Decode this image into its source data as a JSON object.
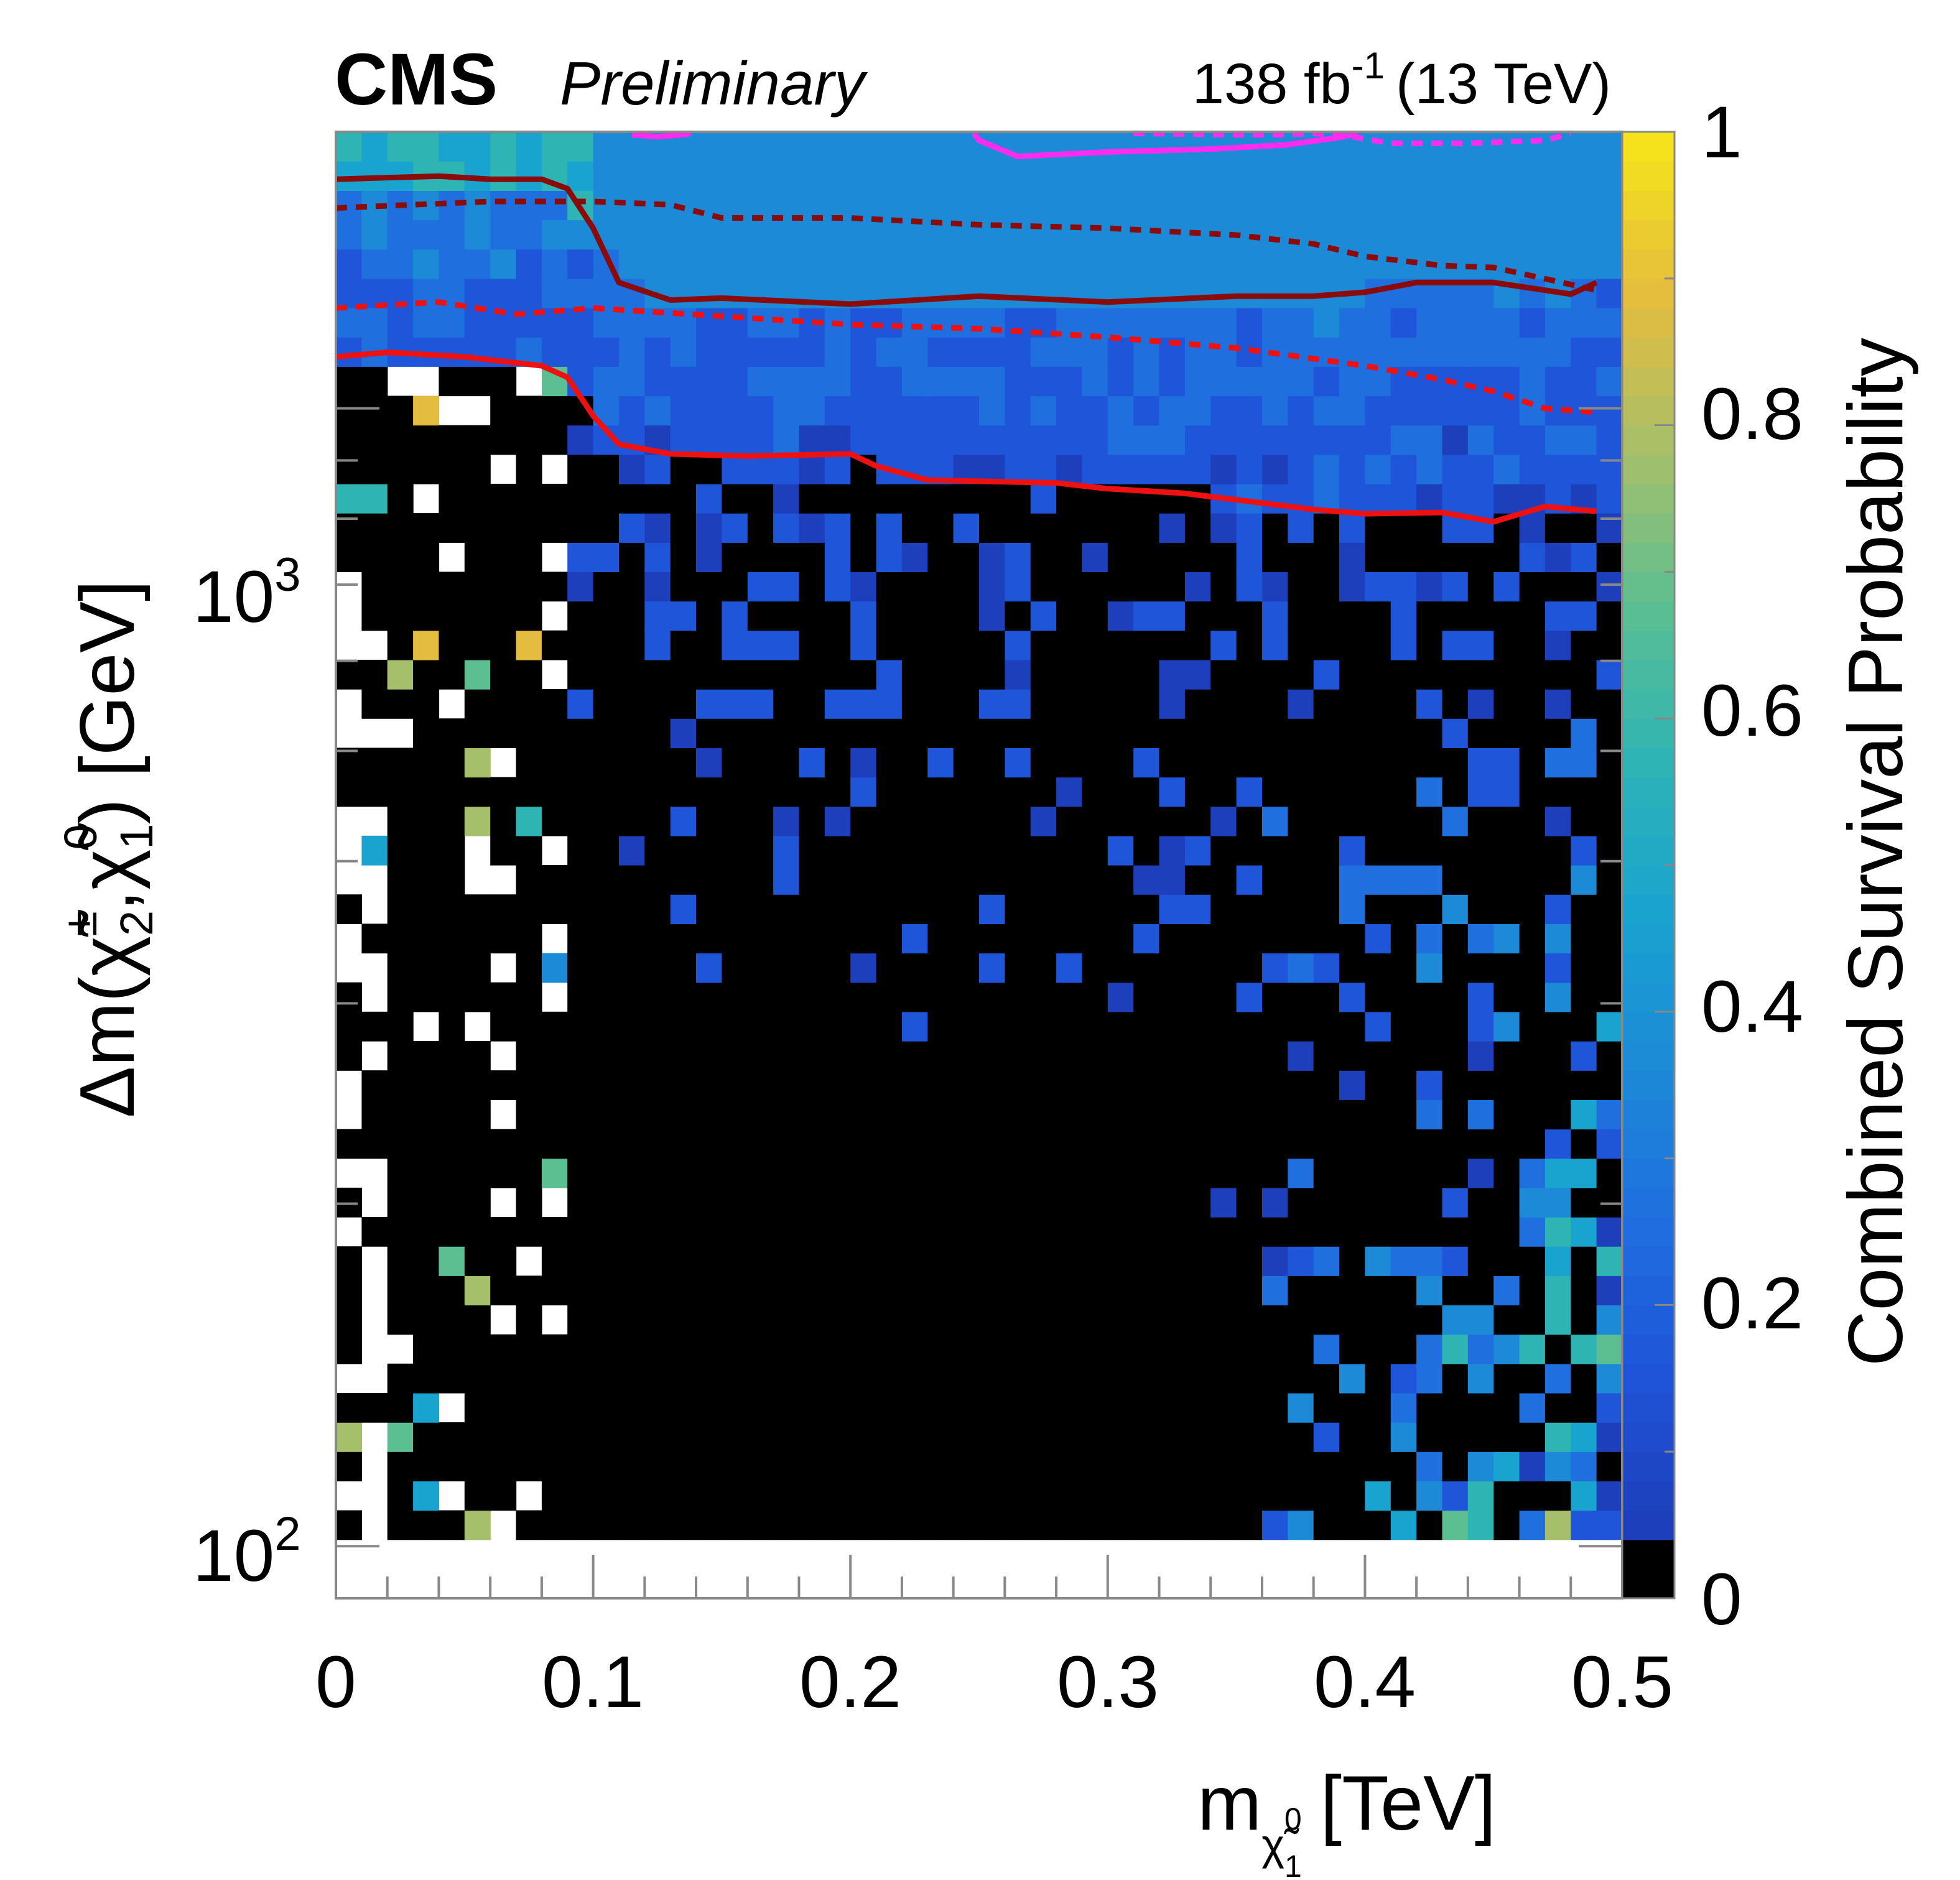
{
  "header": {
    "experiment": "CMS",
    "status": "Preliminary",
    "lumi_value": "138 fb",
    "lumi_exponent": "-1",
    "energy": "(13 TeV)"
  },
  "axes": {
    "x": {
      "title_main": "m",
      "title_sub_particle": "χ̃",
      "title_sub_super": "0",
      "title_sub_sub": "1",
      "title_unit": "[TeV]",
      "tick_labels": [
        "0",
        "0.1",
        "0.2",
        "0.3",
        "0.4",
        "0.5"
      ]
    },
    "y": {
      "title_prefix": "Δm(",
      "title_chi": "χ̃",
      "title_sup1": "±",
      "title_sub1": "2",
      "title_sep": ",",
      "title_sup2": "0",
      "title_sub2": "1",
      "title_suffix": ") [GeV]",
      "tick_labels": [
        "10",
        "10"
      ],
      "tick_exponents": [
        "2",
        "3"
      ]
    },
    "z": {
      "title": "Combined Survival Probability",
      "tick_labels": [
        "0",
        "0.2",
        "0.4",
        "0.6",
        "0.8",
        "1"
      ]
    }
  },
  "chart_data": {
    "type": "heatmap",
    "title": "",
    "xlabel": "m_{χ̃1⁰} [TeV]",
    "ylabel": "Δm(χ̃2±, χ̃1⁰) [GeV]",
    "zlabel": "Combined Survival Probability",
    "xlim": [
      0,
      0.5
    ],
    "ylim": [
      90,
      1750
    ],
    "y_scale": "log",
    "zlim": [
      0,
      1
    ],
    "bins": {
      "nx": 50,
      "ny": 50
    },
    "palette": [
      "#000000",
      "#1d3fbb",
      "#1f55d9",
      "#1f6fde",
      "#1c8ad6",
      "#19a3cf",
      "#2fb4b4",
      "#5cbf92",
      "#a6bf6a",
      "#e4bc3f",
      "#f5e21c"
    ],
    "regions": [
      {
        "description": "strongly excluded (black)",
        "x_range": [
          0.09,
          0.4
        ],
        "dm_range": [
          100,
          950
        ],
        "z": 0.0
      },
      {
        "description": "near exclusion boundary",
        "x_range": [
          0.1,
          0.5
        ],
        "dm_range": [
          750,
          1300
        ],
        "z": 0.12
      },
      {
        "description": "high mass splitting",
        "x_range": [
          0.1,
          0.5
        ],
        "dm_range": [
          1300,
          1750
        ],
        "z": 0.33
      },
      {
        "description": "low neutralino mass strip",
        "x_range": [
          0,
          0.1
        ],
        "dm_range": [
          1300,
          1750
        ],
        "z": 0.5
      },
      {
        "description": "compressed high-mass corner",
        "x_range": [
          0.4,
          0.5
        ],
        "dm_range": [
          100,
          500
        ],
        "z": 0.55
      }
    ],
    "contours": [
      {
        "name": "expected boundary (dark red, solid)",
        "color": "#8b0a0a",
        "dash": false,
        "x": [
          0,
          0.04,
          0.06,
          0.08,
          0.09,
          0.1,
          0.11,
          0.13,
          0.15,
          0.2,
          0.25,
          0.3,
          0.35,
          0.38,
          0.4,
          0.42,
          0.45,
          0.47,
          0.48,
          0.49
        ],
        "y": [
          1590,
          1600,
          1590,
          1590,
          1560,
          1440,
          1290,
          1245,
          1250,
          1235,
          1255,
          1240,
          1255,
          1255,
          1265,
          1290,
          1290,
          1270,
          1260,
          1290
        ]
      },
      {
        "name": "expected boundary band (dark red, dotted)",
        "color": "#8b0a0a",
        "dash": true,
        "x": [
          0,
          0.03,
          0.06,
          0.1,
          0.13,
          0.15,
          0.2,
          0.25,
          0.3,
          0.35,
          0.38,
          0.4,
          0.43,
          0.45,
          0.47,
          0.49
        ],
        "y": [
          1500,
          1510,
          1520,
          1520,
          1510,
          1470,
          1470,
          1450,
          1440,
          1420,
          1395,
          1360,
          1335,
          1330,
          1300,
          1270
        ]
      },
      {
        "name": "observed boundary (red, solid)",
        "color": "#ee1111",
        "dash": false,
        "x": [
          0,
          0.02,
          0.05,
          0.08,
          0.09,
          0.1,
          0.11,
          0.13,
          0.16,
          0.2,
          0.21,
          0.23,
          0.28,
          0.3,
          0.33,
          0.38,
          0.4,
          0.43,
          0.45,
          0.47,
          0.49
        ],
        "y": [
          1110,
          1120,
          1110,
          1090,
          1065,
          985,
          930,
          912,
          908,
          912,
          890,
          865,
          860,
          850,
          842,
          815,
          808,
          810,
          795,
          820,
          812
        ]
      },
      {
        "name": "observed boundary band (red, dotted)",
        "color": "#ee1111",
        "dash": true,
        "x": [
          0,
          0.04,
          0.07,
          0.1,
          0.15,
          0.2,
          0.25,
          0.3,
          0.35,
          0.4,
          0.43,
          0.45,
          0.47,
          0.49
        ],
        "y": [
          1225,
          1240,
          1210,
          1225,
          1205,
          1185,
          1175,
          1155,
          1130,
          1090,
          1060,
          1035,
          1000,
          992
        ]
      },
      {
        "name": "magenta contour (left fragment)",
        "color": "#ff2cf0",
        "dash": false,
        "x": [
          0.115,
          0.125,
          0.135,
          0.138
        ],
        "y": [
          1740,
          1733,
          1740,
          1745
        ]
      },
      {
        "name": "magenta contour (solid)",
        "color": "#ff2cf0",
        "dash": false,
        "x": [
          0.248,
          0.25,
          0.265,
          0.3,
          0.34,
          0.37,
          0.39,
          0.397
        ],
        "y": [
          1745,
          1720,
          1665,
          1680,
          1690,
          1705,
          1730,
          1745
        ]
      },
      {
        "name": "magenta contour (dotted)",
        "color": "#ff2cf0",
        "dash": true,
        "x": [
          0.31,
          0.35,
          0.37,
          0.38,
          0.395,
          0.41,
          0.44,
          0.47,
          0.48
        ],
        "y": [
          1745,
          1740,
          1740,
          1745,
          1733,
          1710,
          1710,
          1720,
          1745
        ]
      }
    ]
  }
}
